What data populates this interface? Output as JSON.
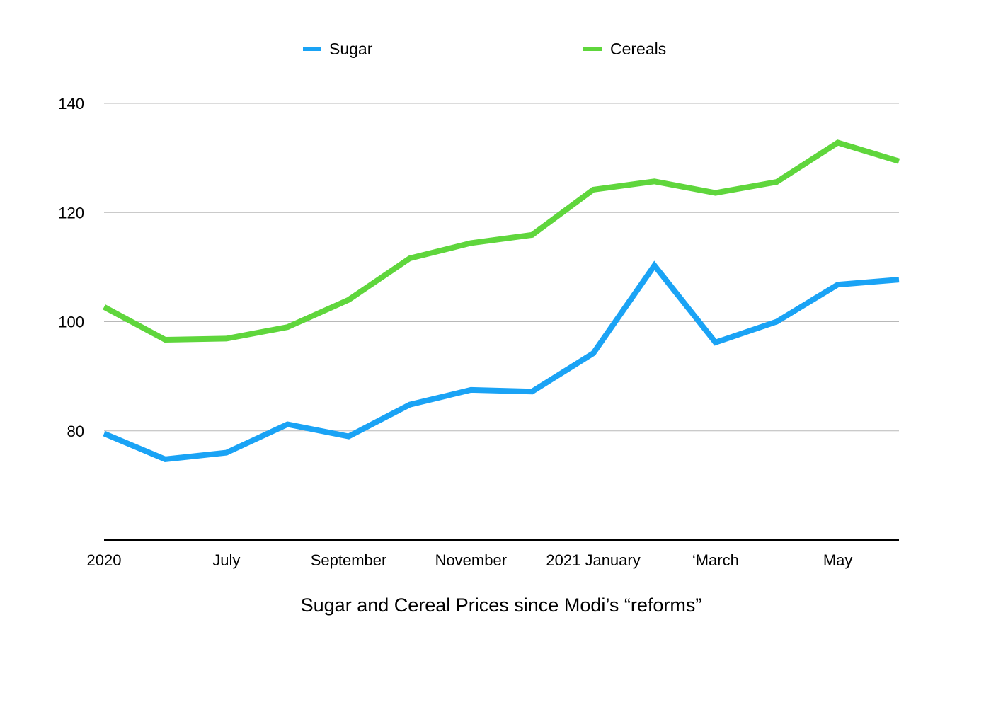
{
  "chart_data": {
    "type": "line",
    "title": "Sugar and Cereal Prices since Modi’s “reforms”",
    "xlabel": "",
    "ylabel": "",
    "x": [
      "2020",
      "",
      "July",
      "",
      "September",
      "",
      "November",
      "",
      "2021 January",
      "",
      "‘March",
      "",
      "May",
      ""
    ],
    "x_tick_labels": [
      "2020",
      "July",
      "September",
      "November",
      "2021 January",
      "‘March",
      "May"
    ],
    "ylim": [
      60,
      140
    ],
    "y_ticks": [
      80,
      100,
      120,
      140
    ],
    "grid": true,
    "legend_position": "top-center",
    "series": [
      {
        "name": "Sugar",
        "color": "#1aa3f5",
        "values": [
          79.5,
          74.8,
          76.0,
          81.2,
          79.0,
          84.8,
          87.5,
          87.2,
          94.2,
          110.3,
          96.2,
          100.0,
          106.8,
          107.7
        ]
      },
      {
        "name": "Cereals",
        "color": "#5fd63c",
        "values": [
          102.7,
          96.7,
          96.9,
          99.0,
          104.0,
          111.6,
          114.4,
          115.9,
          124.2,
          125.7,
          123.6,
          125.6,
          132.8,
          129.4
        ]
      }
    ]
  }
}
